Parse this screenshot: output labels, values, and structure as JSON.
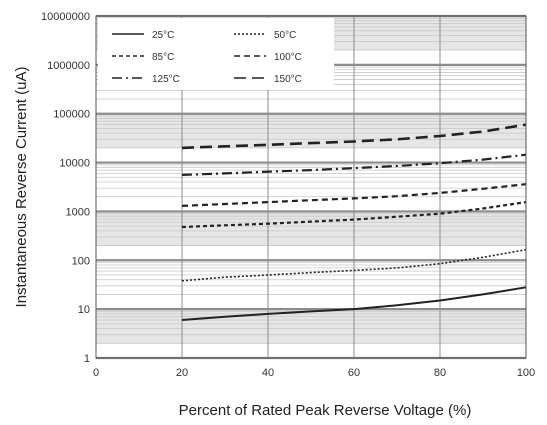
{
  "chart_data": {
    "type": "line",
    "title": "",
    "xlabel": "Percent of  Rated Peak Reverse Voltage (%)",
    "ylabel": "Instantaneous Reverse Current (uA)",
    "xlim": [
      0,
      100
    ],
    "ylim": [
      1,
      10000000
    ],
    "yscale": "log",
    "grid": true,
    "legend_position": "top-left",
    "x_ticks": [
      "0",
      "20",
      "40",
      "60",
      "80",
      "100"
    ],
    "y_ticks": [
      "1",
      "10",
      "100",
      "1000",
      "10000",
      "100000",
      "1000000",
      "10000000"
    ],
    "series": [
      {
        "name": "25°C",
        "style": "solid",
        "x": [
          20,
          30,
          40,
          50,
          60,
          70,
          80,
          90,
          100
        ],
        "y": [
          6,
          7,
          8,
          9,
          10,
          12,
          15,
          20,
          28
        ]
      },
      {
        "name": "50°C",
        "style": "dotted",
        "x": [
          20,
          30,
          40,
          50,
          60,
          70,
          80,
          90,
          100
        ],
        "y": [
          38,
          45,
          50,
          56,
          62,
          70,
          85,
          115,
          165
        ]
      },
      {
        "name": "85°C",
        "style": "dash-small",
        "x": [
          20,
          30,
          40,
          50,
          60,
          70,
          80,
          90,
          100
        ],
        "y": [
          480,
          520,
          560,
          620,
          680,
          780,
          900,
          1150,
          1550
        ]
      },
      {
        "name": "100°C",
        "style": "dash-medium",
        "x": [
          20,
          30,
          40,
          50,
          60,
          70,
          80,
          90,
          100
        ],
        "y": [
          1300,
          1420,
          1550,
          1700,
          1850,
          2050,
          2400,
          2900,
          3600
        ]
      },
      {
        "name": "125°C",
        "style": "dash-dot",
        "x": [
          20,
          30,
          40,
          50,
          60,
          70,
          80,
          90,
          100
        ],
        "y": [
          5600,
          6000,
          6500,
          7000,
          7700,
          8500,
          9700,
          11500,
          14500
        ]
      },
      {
        "name": "150°C",
        "style": "dash-long",
        "x": [
          20,
          30,
          40,
          50,
          60,
          70,
          80,
          90,
          100
        ],
        "y": [
          20000,
          21500,
          23000,
          25000,
          27000,
          30000,
          35000,
          43000,
          60000
        ]
      }
    ],
    "colors": {
      "major_grid": "#8c8c8c",
      "minor_grid": "#c8c8c8",
      "band": "#e6e6e6",
      "line": "#222222"
    }
  }
}
